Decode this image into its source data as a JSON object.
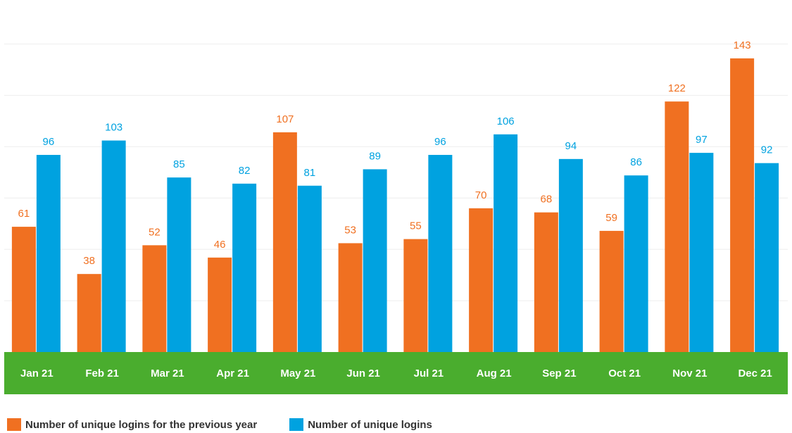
{
  "chart_data": {
    "type": "bar",
    "categories": [
      "Jan 21",
      "Feb 21",
      "Mar 21",
      "Apr 21",
      "May 21",
      "Jun 21",
      "Jul 21",
      "Aug 21",
      "Sep 21",
      "Oct 21",
      "Nov 21",
      "Dec 21"
    ],
    "series": [
      {
        "name": "Number of unique logins for the previous year",
        "color": "#f07021",
        "values": [
          61,
          38,
          52,
          46,
          107,
          53,
          55,
          70,
          68,
          59,
          122,
          143
        ]
      },
      {
        "name": "Number of unique logins",
        "color": "#00a2e0",
        "values": [
          96,
          103,
          85,
          82,
          81,
          89,
          96,
          106,
          94,
          86,
          97,
          92
        ]
      }
    ],
    "title": "",
    "xlabel": "",
    "ylabel": "",
    "ylim": [
      0,
      168
    ],
    "grid": true,
    "legend_position": "bottom-left",
    "axis_band_color": "#4aad2e"
  }
}
